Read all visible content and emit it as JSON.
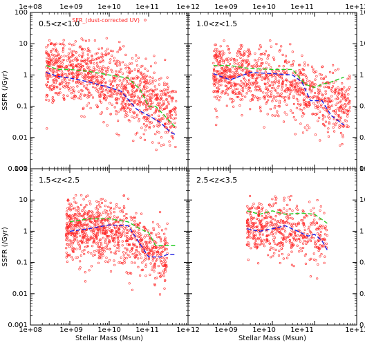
{
  "chart_data": {
    "type": "scatter",
    "xlabel": "Stellar Mass  (Msun)",
    "ylabel": "SSFR  (/Gyr)",
    "x_scale": "log",
    "y_scale": "log",
    "xlim": [
      100000000,
      1000000000000
    ],
    "ylim": [
      0.001,
      100
    ],
    "x_tick_labels": [
      "1e+08",
      "1e+09",
      "1e+10",
      "1e+11",
      "1e+12"
    ],
    "y_tick_labels": [
      "0.001",
      "0.01",
      "0.1",
      "1",
      "10",
      "100"
    ],
    "legend": {
      "label": "SFR_(dust-corrected UV)",
      "placement": "top-center of first panel"
    },
    "colors": {
      "points": "#ff2a2a",
      "median_line": "#22cc22",
      "mean_line": "#1a1ae0"
    },
    "panels": [
      {
        "label": "0.5<z<1.0",
        "points": {
          "n": 1100,
          "x_range": [
            250000000,
            500000000000
          ],
          "y_at_log_mass": [
            [
              8.4,
              1.6
            ],
            [
              9.0,
              1.2
            ],
            [
              9.5,
              0.9
            ],
            [
              10.0,
              0.6
            ],
            [
              10.5,
              0.35
            ],
            [
              11.0,
              0.15
            ],
            [
              11.5,
              0.07
            ]
          ],
          "y_scatter_dex": 0.55
        },
        "series": [
          {
            "style": "dashed",
            "color": "#22cc22",
            "x": [
              250000000,
              500000000,
              1000000000,
              3000000000,
              10000000000,
              30000000000,
              60000000000,
              100000000000,
              150000000000,
              300000000000,
              500000000000
            ],
            "y": [
              2.0,
              1.5,
              1.5,
              1.3,
              1.0,
              0.8,
              0.35,
              0.1,
              0.1,
              0.04,
              0.02
            ]
          },
          {
            "style": "dashed",
            "color": "#1a1ae0",
            "x": [
              250000000,
              500000000,
              1000000000,
              3000000000,
              10000000000,
              20000000000,
              50000000000,
              100000000000,
              200000000000,
              350000000000,
              500000000000
            ],
            "y": [
              1.2,
              0.9,
              0.8,
              0.6,
              0.4,
              0.3,
              0.08,
              0.05,
              0.03,
              0.015,
              0.012
            ]
          }
        ]
      },
      {
        "label": "1.0<z<1.5",
        "points": {
          "n": 1000,
          "x_range": [
            400000000,
            700000000000
          ],
          "y_at_log_mass": [
            [
              8.6,
              1.2
            ],
            [
              9.0,
              1.0
            ],
            [
              9.5,
              0.8
            ],
            [
              10.0,
              0.6
            ],
            [
              10.5,
              0.4
            ],
            [
              11.0,
              0.2
            ],
            [
              11.6,
              0.08
            ]
          ],
          "y_scatter_dex": 0.5
        },
        "series": [
          {
            "style": "dashed",
            "color": "#22cc22",
            "x": [
              400000000,
              1000000000,
              3000000000,
              10000000000,
              30000000000,
              60000000000,
              100000000000,
              150000000000,
              250000000000,
              500000000000
            ],
            "y": [
              2.0,
              2.0,
              1.6,
              1.5,
              1.5,
              0.5,
              0.4,
              0.5,
              0.6,
              0.85
            ]
          },
          {
            "style": "dashed",
            "color": "#1a1ae0",
            "x": [
              400000000,
              1000000000,
              3000000000,
              10000000000,
              30000000000,
              50000000000,
              80000000000,
              150000000000,
              250000000000,
              500000000000
            ],
            "y": [
              1.1,
              0.7,
              1.2,
              1.1,
              1.0,
              0.6,
              0.15,
              0.15,
              0.05,
              0.025
            ]
          }
        ]
      },
      {
        "label": "1.5<z<2.5",
        "points": {
          "n": 900,
          "x_range": [
            800000000,
            300000000000
          ],
          "y_at_log_mass": [
            [
              9.0,
              1.3
            ],
            [
              9.5,
              1.2
            ],
            [
              10.0,
              1.0
            ],
            [
              10.5,
              0.7
            ],
            [
              11.0,
              0.3
            ],
            [
              11.5,
              0.15
            ]
          ],
          "y_scatter_dex": 0.5
        },
        "series": [
          {
            "style": "dashed",
            "color": "#22cc22",
            "x": [
              1000000000,
              3000000000,
              10000000000,
              30000000000,
              60000000000,
              100000000000,
              150000000000,
              300000000000,
              500000000000
            ],
            "y": [
              2.0,
              2.5,
              2.5,
              2.0,
              1.2,
              0.9,
              0.35,
              0.35,
              0.35
            ]
          },
          {
            "style": "dashed",
            "color": "#1a1ae0",
            "x": [
              1000000000,
              3000000000,
              10000000000,
              30000000000,
              60000000000,
              100000000000,
              200000000000,
              300000000000,
              500000000000
            ],
            "y": [
              1.0,
              1.2,
              1.6,
              1.5,
              0.4,
              0.15,
              0.15,
              0.18,
              0.18
            ]
          }
        ]
      },
      {
        "label": "2.5<z<3.5",
        "points": {
          "n": 500,
          "x_range": [
            2500000000,
            200000000000
          ],
          "y_at_log_mass": [
            [
              9.5,
              1.3
            ],
            [
              10.0,
              1.2
            ],
            [
              10.5,
              1.0
            ],
            [
              11.0,
              0.8
            ],
            [
              11.3,
              0.6
            ]
          ],
          "y_scatter_dex": 0.45
        },
        "series": [
          {
            "style": "dashed",
            "color": "#22cc22",
            "x": [
              2500000000,
              5000000000,
              10000000000,
              20000000000,
              50000000000,
              100000000000,
              200000000000
            ],
            "y": [
              4.5,
              3.5,
              4.5,
              3.5,
              3.8,
              3.5,
              1.8
            ]
          },
          {
            "style": "dashed",
            "color": "#1a1ae0",
            "x": [
              2500000000,
              5000000000,
              10000000000,
              20000000000,
              40000000000,
              70000000000,
              100000000000,
              150000000000,
              200000000000
            ],
            "y": [
              1.2,
              1.0,
              1.2,
              1.5,
              1.0,
              0.7,
              0.8,
              0.5,
              0.25
            ]
          }
        ]
      }
    ]
  }
}
